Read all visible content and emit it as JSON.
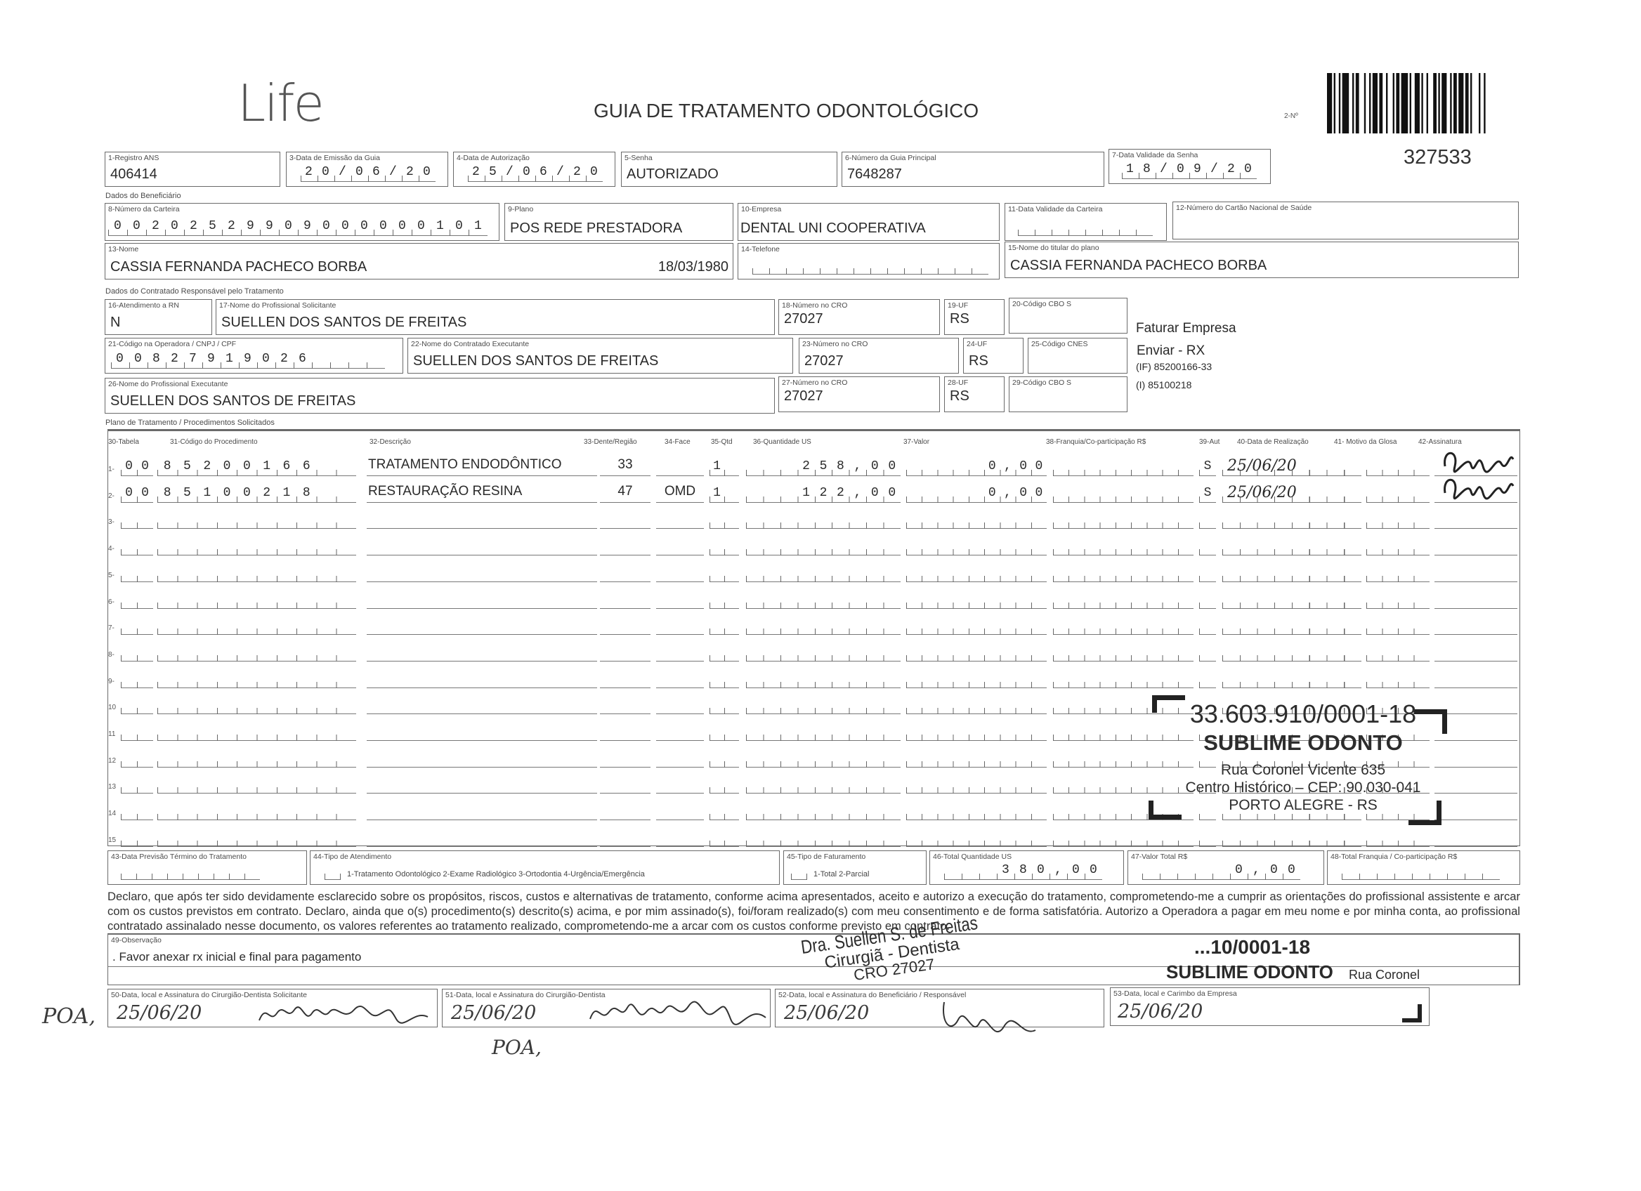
{
  "header": {
    "logo": "Life",
    "title": "GUIA DE TRATAMENTO ODONTOLÓGICO",
    "guia_label": "2-Nº",
    "guia_number": "327533"
  },
  "fields": {
    "f1": {
      "label": "1-Registro ANS",
      "value": "406414"
    },
    "f3": {
      "label": "3-Data de Emissão da Guia",
      "value": "20/06/20"
    },
    "f4": {
      "label": "4-Data de Autorização",
      "value": "25/06/20"
    },
    "f5": {
      "label": "5-Senha",
      "value": "AUTORIZADO"
    },
    "f6": {
      "label": "6-Número da Guia Principal",
      "value": "7648287"
    },
    "f7": {
      "label": "7-Data Validade da Senha",
      "value": "18/09/20"
    },
    "f8": {
      "label": "8-Número da Carteira",
      "value": "00202529909000000101"
    },
    "f9": {
      "label": "9-Plano",
      "value": "POS REDE PRESTADORA"
    },
    "f10": {
      "label": "10-Empresa",
      "value": "DENTAL UNI  COOPERATIVA"
    },
    "f11": {
      "label": "11-Data Validade da Carteira",
      "value": ""
    },
    "f12": {
      "label": "12-Número do Cartão Nacional de Saúde",
      "value": ""
    },
    "f13": {
      "label": "13-Nome",
      "value": "CASSIA FERNANDA PACHECO BORBA",
      "birth": "18/03/1980"
    },
    "f14": {
      "label": "14-Telefone",
      "value": ""
    },
    "f15": {
      "label": "15-Nome do titular do plano",
      "value": "CASSIA FERNANDA PACHECO BORBA"
    },
    "f16": {
      "label": "16-Atendimento a RN",
      "value": "N"
    },
    "f17": {
      "label": "17-Nome do Profissional Solicitante",
      "value": "SUELLEN DOS SANTOS DE FREITAS"
    },
    "f18": {
      "label": "18-Número no CRO",
      "value": "27027"
    },
    "f19": {
      "label": "19-UF",
      "value": "RS"
    },
    "f20": {
      "label": "20-Código CBO S",
      "value": ""
    },
    "f21": {
      "label": "21-Código na Operadora / CNPJ / CPF",
      "value": "00827919026"
    },
    "f22": {
      "label": "22-Nome do Contratado Executante",
      "value": "SUELLEN DOS SANTOS DE FREITAS"
    },
    "f23": {
      "label": "23-Número no CRO",
      "value": "27027"
    },
    "f24": {
      "label": "24-UF",
      "value": "RS"
    },
    "f25": {
      "label": "25-Código CNES",
      "value": ""
    },
    "f26": {
      "label": "26-Nome do Profissional Executante",
      "value": "SUELLEN DOS SANTOS DE FREITAS"
    },
    "f27": {
      "label": "27-Número no CRO",
      "value": "27027"
    },
    "f28": {
      "label": "28-UF",
      "value": "RS"
    },
    "f29": {
      "label": "29-Código CBO S",
      "value": ""
    }
  },
  "sections": {
    "beneficiario": "Dados do Beneficiário",
    "contratado": "Dados do Contratado Responsável pelo Tratamento",
    "plano": "Plano de Tratamento / Procedimentos Solicitados"
  },
  "notes": {
    "faturar": "Faturar Empresa",
    "enviar": "Enviar - RX",
    "if": "(IF) 85200166-33",
    "i": "(I) 85100218"
  },
  "procedures": {
    "columns": [
      "30-Tabela",
      "31-Código do Procedimento",
      "32-Descrição",
      "33-Dente/Região",
      "34-Face",
      "35-Qtd",
      "36-Quantidade US",
      "37-Valor",
      "38-Franquia/Co-participação R$",
      "39-Aut",
      "40-Data de Realização",
      "41- Motivo da Glosa",
      "42-Assinatura"
    ],
    "rows": [
      {
        "num": "1-",
        "tabela": "00",
        "codigo": "85200166",
        "descricao": "TRATAMENTO ENDODÔNTICO",
        "dente": "33",
        "face": "",
        "qtd": "1",
        "quant_us": "258,00",
        "valor": "0,00",
        "franquia": "",
        "aut": "S",
        "data": "25/06/20",
        "signed": true
      },
      {
        "num": "2-",
        "tabela": "00",
        "codigo": "85100218",
        "descricao": "RESTAURAÇÃO RESINA",
        "dente": "47",
        "face": "OMD",
        "qtd": "1",
        "quant_us": "122,00",
        "valor": "0,00",
        "franquia": "",
        "aut": "S",
        "data": "25/06/20",
        "signed": true
      },
      {
        "num": "3-"
      },
      {
        "num": "4-"
      },
      {
        "num": "5-"
      },
      {
        "num": "6-"
      },
      {
        "num": "7-"
      },
      {
        "num": "8-"
      },
      {
        "num": "9-"
      },
      {
        "num": "10"
      },
      {
        "num": "11"
      },
      {
        "num": "12"
      },
      {
        "num": "13"
      },
      {
        "num": "14"
      },
      {
        "num": "15"
      }
    ]
  },
  "totals": {
    "f43": {
      "label": "43-Data Previsão Término do Tratamento",
      "value": ""
    },
    "f44": {
      "label": "44-Tipo de Atendimento",
      "options": "1-Tratamento Odontológico  2-Exame Radiológico  3-Ortodontia  4-Urgência/Emergência"
    },
    "f45": {
      "label": "45-Tipo de Faturamento",
      "options": "1-Total  2-Parcial"
    },
    "f46": {
      "label": "46-Total Quantidade US",
      "value": "380,00"
    },
    "f47": {
      "label": "47-Valor Total R$",
      "value": "0,00"
    },
    "f48": {
      "label": "48-Total Franquia / Co-participação R$",
      "value": ""
    }
  },
  "declaration": "Declaro, que após ter sido devidamente esclarecido sobre os propósitos, riscos, custos e alternativas de tratamento, conforme acima apresentados, aceito e autorizo a execução do tratamento, comprometendo-me a cumprir as orientações do profissional assistente e arcar com os custos previstos em contrato. Declaro, ainda que o(s) procedimento(s) descrito(s) acima, e por mim assinado(s), foi/foram realizado(s) com meu consentimento e de forma satisfatória. Autorizo a Operadora a pagar em meu nome e por minha conta, ao profissional contratado assinalado nesse documento, os valores referentes ao tratamento realizado, comprometendo-me a arcar com os custos conforme previsto em contrato.",
  "observation": {
    "label": "49-Observação",
    "value": ". Favor anexar rx inicial e final para pagamento"
  },
  "signatures": {
    "f50": {
      "label": "50-Data, local e Assinatura do Cirurgião-Dentista Solicitante",
      "date": "25/06/20"
    },
    "f51": {
      "label": "51-Data, local e Assinatura do Cirurgião-Dentista",
      "date": "25/06/20"
    },
    "f52": {
      "label": "52-Data, local e Assinatura do Beneficiário / Responsável",
      "date": "25/06/20"
    },
    "f53": {
      "label": "53-Data, local e Carimbo da Empresa",
      "date": "25/06/20"
    }
  },
  "handwritten": {
    "poa1": "POA,",
    "poa2": "POA,"
  },
  "stamp_company": {
    "cnpj": "33.603.910/0001-18",
    "name": "SUBLIME ODONTO",
    "address": "Rua Coronel Vicente 635",
    "district": "Centro Histórico – CEP: 90.030-041",
    "city": "PORTO ALEGRE - RS"
  },
  "stamp_company_partial": {
    "cnpj": "...10/0001-18",
    "name": "SUBLIME ODONTO",
    "address": "Rua Coronel"
  },
  "stamp_dentist": {
    "name": "Dra. Suellen S. de Freitas",
    "role": "Cirurgiã - Dentista",
    "cro": "CRO 27027"
  }
}
